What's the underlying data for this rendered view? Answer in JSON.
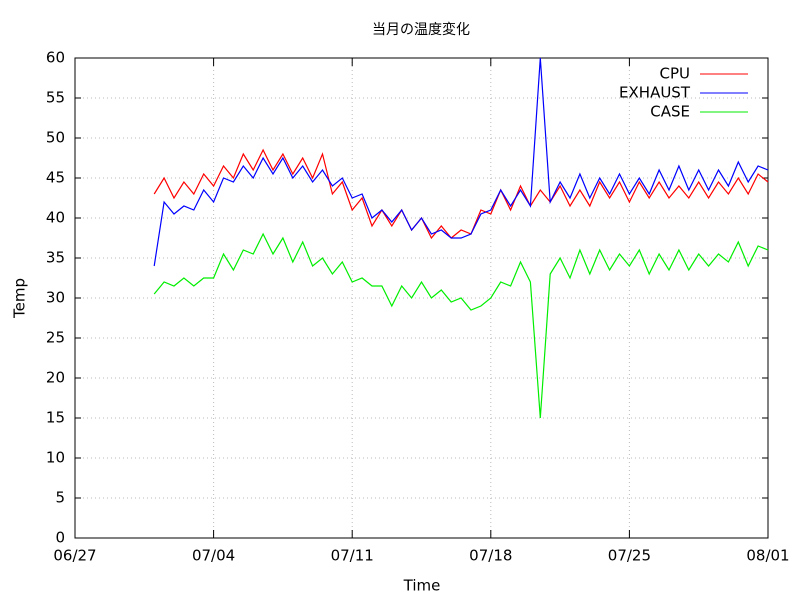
{
  "chart_data": {
    "type": "line",
    "title": "当月の温度変化",
    "xlabel": "Time",
    "ylabel": "Temp",
    "xlim": [
      0,
      35
    ],
    "xticks": [
      {
        "value": 0,
        "label": "06/27"
      },
      {
        "value": 7,
        "label": "07/04"
      },
      {
        "value": 14,
        "label": "07/11"
      },
      {
        "value": 21,
        "label": "07/18"
      },
      {
        "value": 28,
        "label": "07/25"
      },
      {
        "value": 35,
        "label": "08/01"
      }
    ],
    "ylim": [
      0,
      60
    ],
    "yticks": [
      0,
      5,
      10,
      15,
      20,
      25,
      30,
      35,
      40,
      45,
      50,
      55,
      60
    ],
    "grid": true,
    "legend": "top-right",
    "x": [
      4,
      4.5,
      5,
      5.5,
      6,
      6.5,
      7,
      7.5,
      8,
      8.5,
      9,
      9.5,
      10,
      10.5,
      11,
      11.5,
      12,
      12.5,
      13,
      13.5,
      14,
      14.5,
      15,
      15.5,
      16,
      16.5,
      17,
      17.5,
      18,
      18.5,
      19,
      19.5,
      20,
      20.5,
      21,
      21.5,
      22,
      22.5,
      23,
      23.5,
      24,
      24.5,
      25,
      25.5,
      26,
      26.5,
      27,
      27.5,
      28,
      28.5,
      29,
      29.5,
      30,
      30.5,
      31,
      31.5,
      32,
      32.5,
      33,
      33.5,
      34,
      34.5,
      35
    ],
    "series": [
      {
        "name": "CPU",
        "color": "#ff0000",
        "values": [
          43,
          45,
          42.5,
          44.5,
          43,
          45.5,
          44,
          46.5,
          45,
          48,
          46,
          48.5,
          46,
          48,
          45.5,
          47.5,
          45,
          48,
          43,
          44.5,
          41,
          42.5,
          39,
          41,
          39,
          41,
          38.5,
          40,
          37.5,
          39,
          37.5,
          38.5,
          38,
          41,
          40.5,
          43.5,
          41,
          44,
          41.5,
          43.5,
          42,
          44,
          41.5,
          43.5,
          41.5,
          44.5,
          42.5,
          44.5,
          42,
          44.5,
          42.5,
          44.5,
          42.5,
          44,
          42.5,
          44.5,
          42.5,
          44.5,
          43,
          45,
          43,
          45.5,
          44.5
        ]
      },
      {
        "name": "EXHAUST",
        "color": "#0000ff",
        "values": [
          34,
          42,
          40.5,
          41.5,
          41,
          43.5,
          42,
          45,
          44.5,
          46.5,
          45,
          47.5,
          45.5,
          47.5,
          45,
          46.5,
          44.5,
          46,
          44,
          45,
          42.5,
          43,
          40,
          41,
          39.5,
          41,
          38.5,
          40,
          38,
          38.5,
          37.5,
          37.5,
          38,
          40.5,
          41,
          43.5,
          41.5,
          43.5,
          41.5,
          60,
          42,
          44.5,
          42.5,
          45.5,
          42.5,
          45,
          43,
          45.5,
          43,
          45,
          43,
          46,
          43.5,
          46.5,
          43.5,
          46,
          43.5,
          46,
          44,
          47,
          44.5,
          46.5,
          46
        ]
      },
      {
        "name": "CASE",
        "color": "#00ee00",
        "values": [
          30.5,
          32,
          31.5,
          32.5,
          31.5,
          32.5,
          32.5,
          35.5,
          33.5,
          36,
          35.5,
          38,
          35.5,
          37.5,
          34.5,
          37,
          34,
          35,
          33,
          34.5,
          32,
          32.5,
          31.5,
          31.5,
          29,
          31.5,
          30,
          32,
          30,
          31,
          29.5,
          30,
          28.5,
          29,
          30,
          32,
          31.5,
          34.5,
          32,
          15,
          33,
          35,
          32.5,
          36,
          33,
          36,
          33.5,
          35.5,
          34,
          36,
          33,
          35.5,
          33.5,
          36,
          33.5,
          35.5,
          34,
          35.5,
          34.5,
          37,
          34,
          36.5,
          36
        ]
      }
    ]
  }
}
